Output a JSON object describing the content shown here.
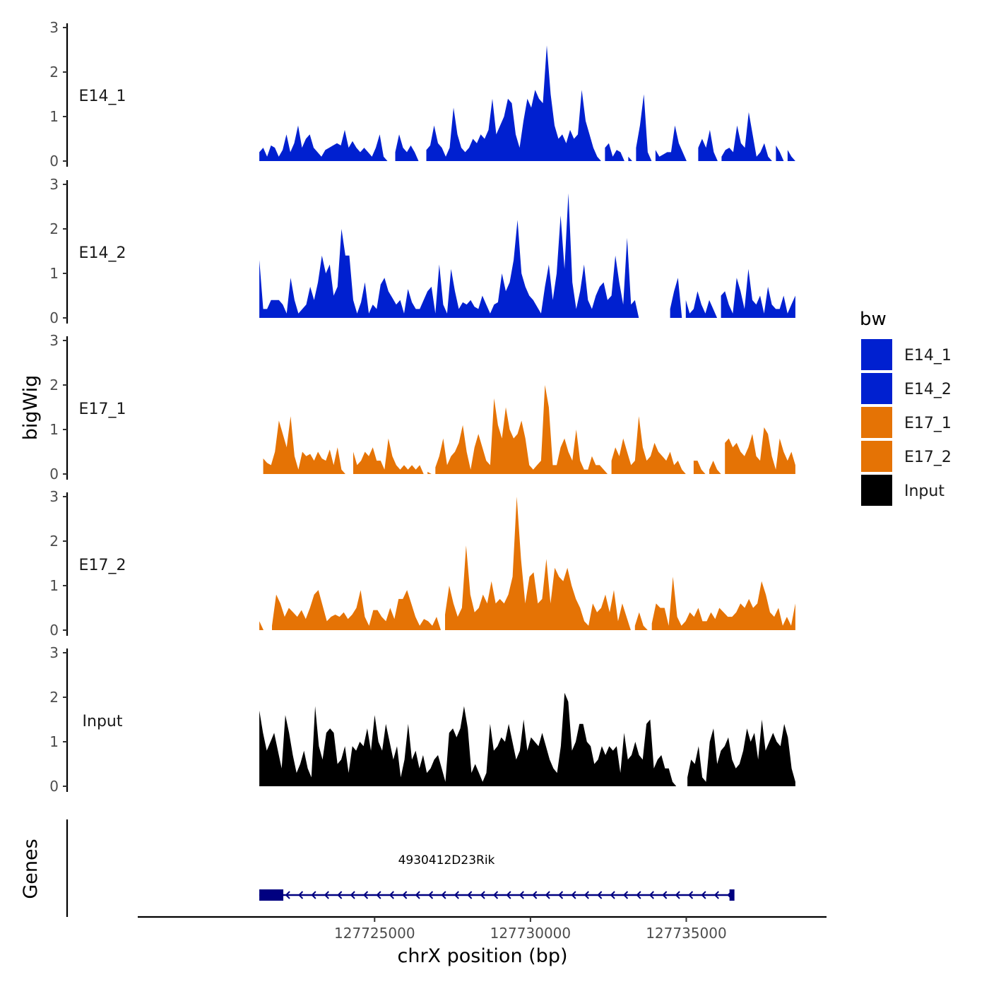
{
  "chart_data": {
    "type": "area",
    "ylabel": "bigWig",
    "xlabel": "chrX position (bp)",
    "xlim": [
      127717400,
      127739500
    ],
    "ylim": [
      0,
      3
    ],
    "y_ticks": [
      "0",
      "1",
      "2",
      "3"
    ],
    "x_ticks": [
      {
        "value": 127725000,
        "label": "127725000"
      },
      {
        "value": 127730000,
        "label": "127730000"
      },
      {
        "value": 127735000,
        "label": "127735000"
      }
    ],
    "x_range": [
      127721300,
      127738500
    ],
    "legend": {
      "title": "bw",
      "items": [
        {
          "label": "E14_1",
          "color": "#0020D0"
        },
        {
          "label": "E14_2",
          "color": "#0020D0"
        },
        {
          "label": "E17_1",
          "color": "#E57305"
        },
        {
          "label": "E17_2",
          "color": "#E57305"
        },
        {
          "label": "Input",
          "color": "#000000"
        }
      ]
    },
    "tracks": [
      {
        "name": "E14_1",
        "color": "#0020D0",
        "values": [
          0.2,
          0.3,
          0.1,
          0.35,
          0.3,
          0.1,
          0.25,
          0.6,
          0.2,
          0.4,
          0.8,
          0.3,
          0.5,
          0.6,
          0.3,
          0.2,
          0.1,
          0.25,
          0.3,
          0.35,
          0.4,
          0.35,
          0.7,
          0.3,
          0.45,
          0.3,
          0.2,
          0.3,
          0.2,
          0.1,
          0.3,
          0.6,
          0.1,
          0,
          0,
          0.2,
          0.6,
          0.3,
          0.2,
          0.35,
          0.2,
          0,
          0,
          0.25,
          0.35,
          0.8,
          0.4,
          0.3,
          0.1,
          0.3,
          1.2,
          0.6,
          0.3,
          0.2,
          0.3,
          0.5,
          0.4,
          0.6,
          0.5,
          0.7,
          1.4,
          0.6,
          0.8,
          1.0,
          1.4,
          1.3,
          0.6,
          0.3,
          0.9,
          1.4,
          1.2,
          1.6,
          1.4,
          1.3,
          2.6,
          1.5,
          0.8,
          0.5,
          0.6,
          0.4,
          0.7,
          0.5,
          0.6,
          1.6,
          0.9,
          0.6,
          0.3,
          0.1,
          0,
          0.3,
          0.4,
          0.1,
          0.25,
          0.2,
          0,
          0.1,
          0,
          0.3,
          0.8,
          1.5,
          0.2,
          0,
          0.25,
          0.1,
          0.15,
          0.2,
          0.2,
          0.8,
          0.4,
          0.2,
          0,
          0,
          0,
          0.3,
          0.5,
          0.3,
          0.7,
          0.2,
          0,
          0.1,
          0.25,
          0.3,
          0.2,
          0.8,
          0.4,
          0.3,
          1.1,
          0.6,
          0.1,
          0.2,
          0.4,
          0.1,
          0,
          0.35,
          0.2,
          0,
          0.25,
          0.1,
          0
        ]
      },
      {
        "name": "E14_2",
        "color": "#0020D0",
        "values": [
          1.3,
          0.2,
          0.2,
          0.4,
          0.4,
          0.4,
          0.3,
          0.1,
          0.9,
          0.4,
          0.1,
          0.2,
          0.3,
          0.7,
          0.4,
          0.8,
          1.4,
          1.0,
          1.2,
          0.5,
          0.7,
          2.0,
          1.4,
          1.4,
          0.4,
          0.1,
          0.35,
          0.8,
          0.1,
          0.3,
          0.2,
          0.75,
          0.9,
          0.6,
          0.45,
          0.3,
          0.4,
          0.1,
          0.65,
          0.35,
          0.2,
          0.2,
          0.4,
          0.6,
          0.7,
          0.1,
          1.2,
          0.3,
          0.1,
          1.1,
          0.6,
          0.2,
          0.35,
          0.3,
          0.4,
          0.25,
          0.2,
          0.5,
          0.3,
          0.1,
          0.3,
          0.35,
          1.0,
          0.6,
          0.8,
          1.3,
          2.2,
          1.0,
          0.7,
          0.5,
          0.4,
          0.25,
          0.1,
          0.7,
          1.2,
          0.4,
          1.0,
          2.3,
          1.1,
          2.8,
          0.8,
          0.2,
          0.6,
          1.2,
          0.4,
          0.2,
          0.5,
          0.7,
          0.8,
          0.4,
          0.5,
          1.4,
          0.8,
          0.3,
          1.8,
          0.3,
          0.4,
          0,
          0,
          0,
          0,
          0,
          0,
          0,
          0,
          0.2,
          0.6,
          0.9,
          0,
          0.4,
          0.1,
          0.2,
          0.6,
          0.3,
          0.1,
          0.4,
          0.2,
          0,
          0.5,
          0.6,
          0.3,
          0.1,
          0.9,
          0.6,
          0.2,
          1.1,
          0.4,
          0.3,
          0.5,
          0.1,
          0.7,
          0.3,
          0.2,
          0.2,
          0.5,
          0.1,
          0.3,
          0.5
        ]
      },
      {
        "name": "E17_1",
        "color": "#E57305",
        "values": [
          0,
          0.35,
          0.25,
          0.2,
          0.5,
          1.2,
          0.9,
          0.6,
          1.3,
          0.4,
          0.1,
          0.5,
          0.4,
          0.45,
          0.3,
          0.5,
          0.35,
          0.3,
          0.55,
          0.2,
          0.6,
          0.1,
          0,
          0,
          0.5,
          0.2,
          0.3,
          0.5,
          0.4,
          0.6,
          0.3,
          0.3,
          0.1,
          0.8,
          0.4,
          0.2,
          0.1,
          0.2,
          0.1,
          0.2,
          0.1,
          0.2,
          0,
          0.05,
          0,
          0.15,
          0.4,
          0.8,
          0.2,
          0.4,
          0.5,
          0.7,
          1.1,
          0.5,
          0.1,
          0.6,
          0.9,
          0.6,
          0.3,
          0.2,
          1.7,
          1.1,
          0.8,
          1.5,
          1.0,
          0.8,
          0.9,
          1.2,
          0.8,
          0.2,
          0.1,
          0.2,
          0.3,
          2.0,
          1.5,
          0.2,
          0.2,
          0.6,
          0.8,
          0.5,
          0.3,
          1.0,
          0.3,
          0.1,
          0.1,
          0.4,
          0.2,
          0.2,
          0.1,
          0,
          0.3,
          0.6,
          0.4,
          0.8,
          0.5,
          0.2,
          0.3,
          1.3,
          0.6,
          0.3,
          0.4,
          0.7,
          0.5,
          0.4,
          0.3,
          0.5,
          0.2,
          0.3,
          0.1,
          0,
          0,
          0.3,
          0.3,
          0.1,
          0,
          0.1,
          0.3,
          0.1,
          0,
          0.7,
          0.8,
          0.6,
          0.7,
          0.5,
          0.4,
          0.6,
          0.9,
          0.4,
          0.3,
          1.05,
          0.9,
          0.4,
          0.1,
          0.8,
          0.5,
          0.3,
          0.5,
          0.2
        ]
      },
      {
        "name": "E17_2",
        "color": "#E57305",
        "values": [
          0.2,
          0,
          0,
          0.1,
          0.8,
          0.6,
          0.3,
          0.5,
          0.4,
          0.3,
          0.45,
          0.25,
          0.5,
          0.8,
          0.9,
          0.55,
          0.2,
          0.3,
          0.35,
          0.3,
          0.4,
          0.25,
          0.35,
          0.5,
          0.9,
          0.3,
          0.1,
          0.45,
          0.45,
          0.3,
          0.2,
          0.5,
          0.25,
          0.7,
          0.7,
          0.9,
          0.6,
          0.3,
          0.1,
          0.25,
          0.2,
          0.1,
          0.3,
          0,
          0.35,
          1.0,
          0.6,
          0.3,
          0.5,
          1.9,
          0.8,
          0.4,
          0.5,
          0.8,
          0.6,
          1.1,
          0.6,
          0.7,
          0.6,
          0.8,
          1.2,
          3.0,
          1.6,
          0.6,
          1.2,
          1.3,
          0.6,
          0.7,
          1.6,
          0.6,
          1.4,
          1.2,
          1.1,
          1.4,
          1.0,
          0.7,
          0.5,
          0.2,
          0.1,
          0.6,
          0.4,
          0.5,
          0.8,
          0.4,
          0.9,
          0.2,
          0.6,
          0.3,
          0,
          0.1,
          0.4,
          0.1,
          0,
          0.15,
          0.6,
          0.5,
          0.5,
          0.1,
          1.2,
          0.3,
          0.1,
          0.2,
          0.4,
          0.3,
          0.5,
          0.2,
          0.2,
          0.4,
          0.25,
          0.5,
          0.4,
          0.3,
          0.3,
          0.4,
          0.6,
          0.5,
          0.7,
          0.5,
          0.6,
          1.1,
          0.8,
          0.4,
          0.3,
          0.5,
          0.1,
          0.3,
          0.1,
          0.6
        ]
      },
      {
        "name": "Input",
        "color": "#000000",
        "values": [
          1.7,
          1.2,
          0.8,
          1.0,
          1.2,
          0.8,
          0.4,
          1.6,
          1.2,
          0.7,
          0.3,
          0.5,
          0.8,
          0.4,
          0.2,
          1.8,
          0.9,
          0.6,
          1.2,
          1.3,
          1.2,
          0.5,
          0.6,
          0.9,
          0.3,
          0.9,
          0.8,
          1.0,
          0.9,
          1.3,
          0.8,
          1.6,
          1.0,
          0.8,
          1.4,
          1.0,
          0.6,
          0.9,
          0.2,
          0.6,
          1.4,
          0.6,
          0.8,
          0.4,
          0.7,
          0.3,
          0.4,
          0.6,
          0.7,
          0.4,
          0.1,
          1.2,
          1.3,
          1.1,
          1.3,
          1.8,
          1.3,
          0.3,
          0.5,
          0.3,
          0.1,
          0.3,
          1.4,
          0.8,
          0.9,
          1.1,
          1.0,
          1.4,
          1.0,
          0.6,
          0.8,
          1.5,
          0.8,
          1.1,
          1.0,
          0.9,
          1.2,
          0.9,
          0.6,
          0.4,
          0.3,
          0.9,
          2.1,
          1.9,
          0.8,
          1.0,
          1.4,
          1.4,
          1.0,
          0.9,
          0.5,
          0.6,
          0.9,
          0.7,
          0.9,
          0.8,
          0.9,
          0.3,
          1.2,
          0.6,
          0.7,
          1.0,
          0.7,
          0.6,
          1.4,
          1.5,
          0.4,
          0.6,
          0.7,
          0.4,
          0.4,
          0.1,
          0,
          0,
          0,
          0.2,
          0.6,
          0.5,
          0.9,
          0.2,
          0.1,
          1.0,
          1.3,
          0.5,
          0.8,
          0.9,
          1.1,
          0.6,
          0.4,
          0.5,
          0.8,
          1.3,
          1.0,
          1.2,
          0.6,
          1.5,
          0.8,
          1.0,
          1.2,
          1.0,
          0.9,
          1.4,
          1.1,
          0.4,
          0.1
        ]
      }
    ],
    "genes_label": "Genes",
    "gene": {
      "name": "4930412D23Rik",
      "start": 127721300,
      "end": 127736500,
      "strand": "-"
    }
  }
}
